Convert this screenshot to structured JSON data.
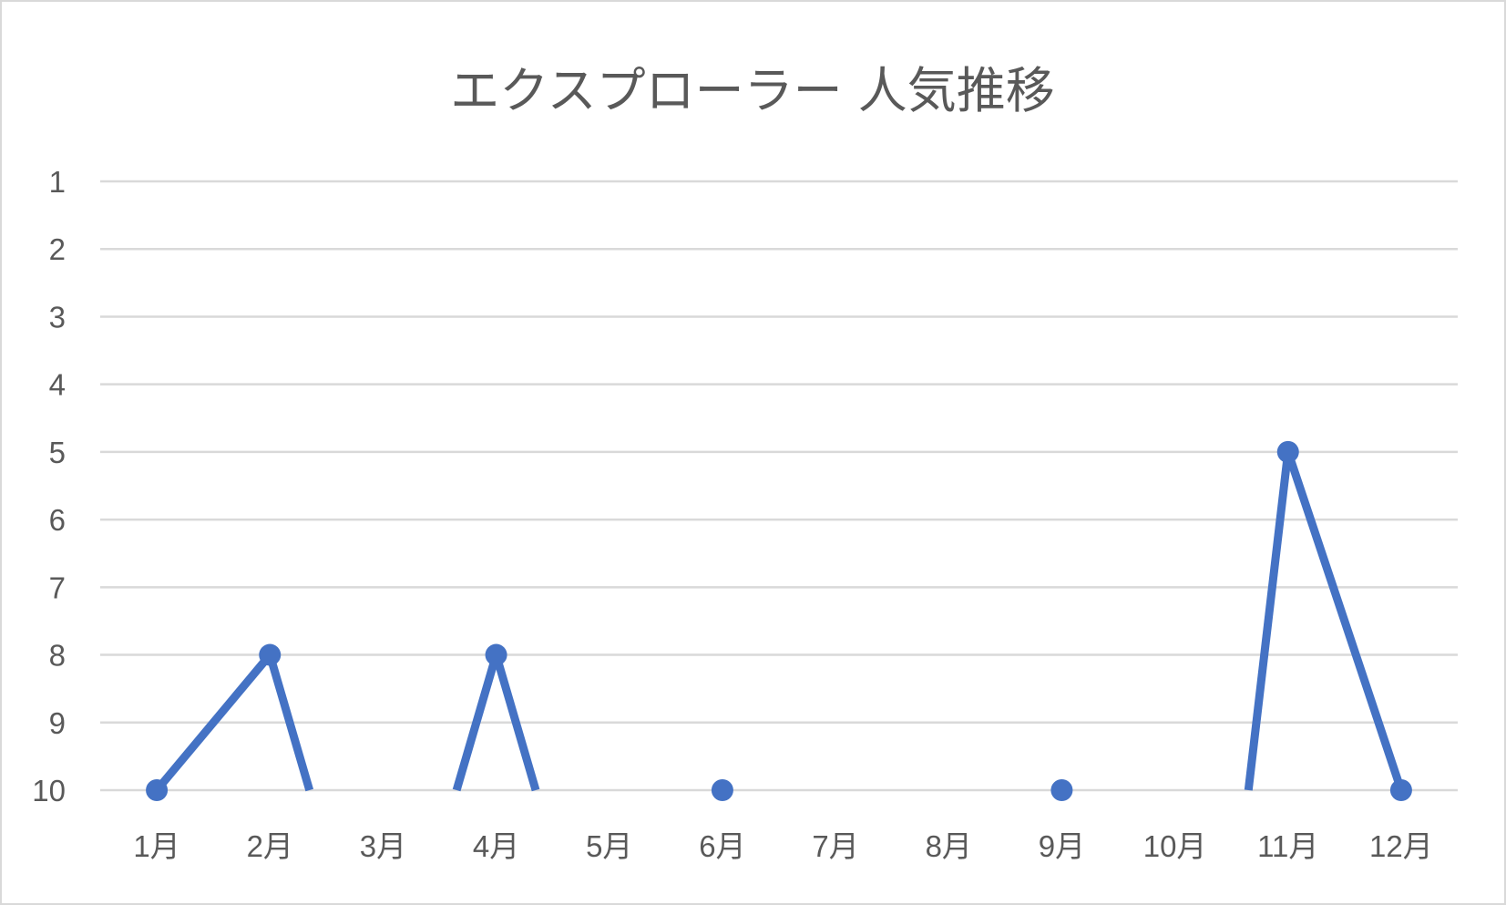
{
  "chart_data": {
    "type": "line",
    "title": "エクスプローラー 人気推移",
    "categories": [
      "1月",
      "2月",
      "3月",
      "4月",
      "5月",
      "6月",
      "7月",
      "8月",
      "9月",
      "10月",
      "11月",
      "12月"
    ],
    "series": [
      {
        "values": [
          10,
          8,
          null,
          8,
          null,
          10,
          null,
          null,
          10,
          null,
          5,
          10
        ],
        "color": "#4472C4"
      }
    ],
    "y_ticks": [
      "1",
      "2",
      "3",
      "4",
      "5",
      "6",
      "7",
      "8",
      "9",
      "10"
    ],
    "ylim": [
      1,
      10
    ],
    "y_reversed": true,
    "grid": true,
    "legend": "none"
  }
}
